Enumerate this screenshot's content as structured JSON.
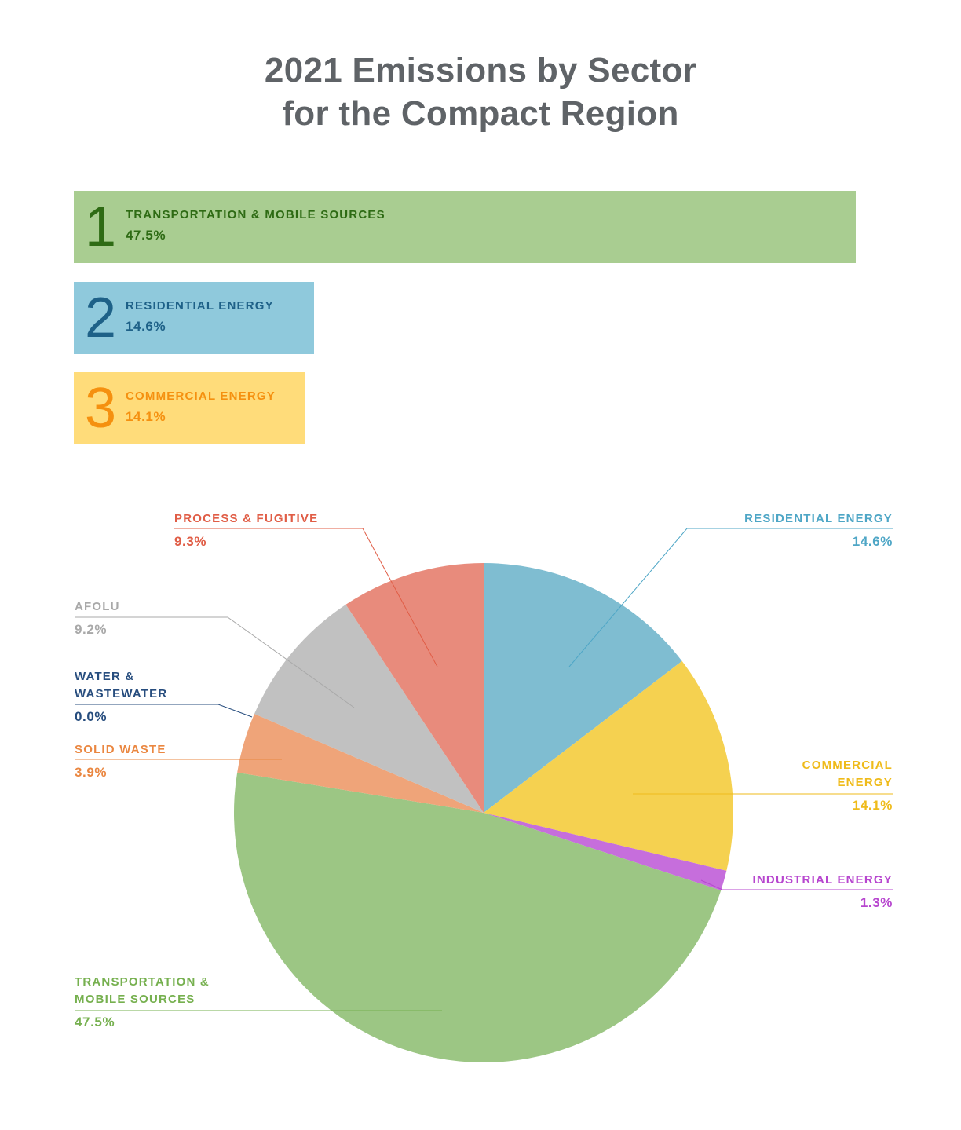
{
  "title": {
    "line1": "2021 Emissions by Sector",
    "line2": "for the Compact Region"
  },
  "top_sectors": [
    {
      "rank": "1",
      "label": "TRANSPORTATION & MOBILE SOURCES",
      "value": "47.5%",
      "bg": "#a9cd91",
      "fg": "#2e6b14"
    },
    {
      "rank": "2",
      "label": "RESIDENTIAL ENERGY",
      "value": "14.6%",
      "bg": "#8fc9dc",
      "fg": "#1e6188"
    },
    {
      "rank": "3",
      "label": "COMMERCIAL ENERGY",
      "value": "14.1%",
      "bg": "#ffdc7a",
      "fg": "#f5900f"
    }
  ],
  "chart_data": {
    "type": "pie",
    "title": "2021 Emissions by Sector for the Compact Region",
    "unit": "%",
    "slices": [
      {
        "name": "RESIDENTIAL ENERGY",
        "label_lines": [
          "RESIDENTIAL ENERGY"
        ],
        "value": 14.6,
        "display": "14.6%",
        "color": "#7fbdd1",
        "text_color": "#4ea6c6"
      },
      {
        "name": "COMMERCIAL ENERGY",
        "label_lines": [
          "COMMERCIAL",
          "ENERGY"
        ],
        "value": 14.1,
        "display": "14.1%",
        "color": "#f5d150",
        "text_color": "#efbb1b"
      },
      {
        "name": "INDUSTRIAL ENERGY",
        "label_lines": [
          "INDUSTRIAL ENERGY"
        ],
        "value": 1.3,
        "display": "1.3%",
        "color": "#c66edc",
        "text_color": "#b746cf"
      },
      {
        "name": "TRANSPORTATION & MOBILE SOURCES",
        "label_lines": [
          "TRANSPORTATION &",
          "MOBILE SOURCES"
        ],
        "value": 47.5,
        "display": "47.5%",
        "color": "#9cc684",
        "text_color": "#76b04f"
      },
      {
        "name": "SOLID WASTE",
        "label_lines": [
          "SOLID WASTE"
        ],
        "value": 3.9,
        "display": "3.9%",
        "color": "#efa479",
        "text_color": "#ea8741"
      },
      {
        "name": "WATER & WASTEWATER",
        "label_lines": [
          "WATER &",
          "WASTEWATER"
        ],
        "value": 0.0,
        "display": "0.0%",
        "color": "#2b5285",
        "text_color": "#274d7e"
      },
      {
        "name": "AFOLU",
        "label_lines": [
          "AFOLU"
        ],
        "value": 9.2,
        "display": "9.2%",
        "color": "#c1c1c1",
        "text_color": "#a9a9a9"
      },
      {
        "name": "PROCESS & FUGITIVE",
        "label_lines": [
          "PROCESS & FUGITIVE"
        ],
        "value": 9.3,
        "display": "9.3%",
        "color": "#e88b7c",
        "text_color": "#e05d46"
      }
    ]
  }
}
